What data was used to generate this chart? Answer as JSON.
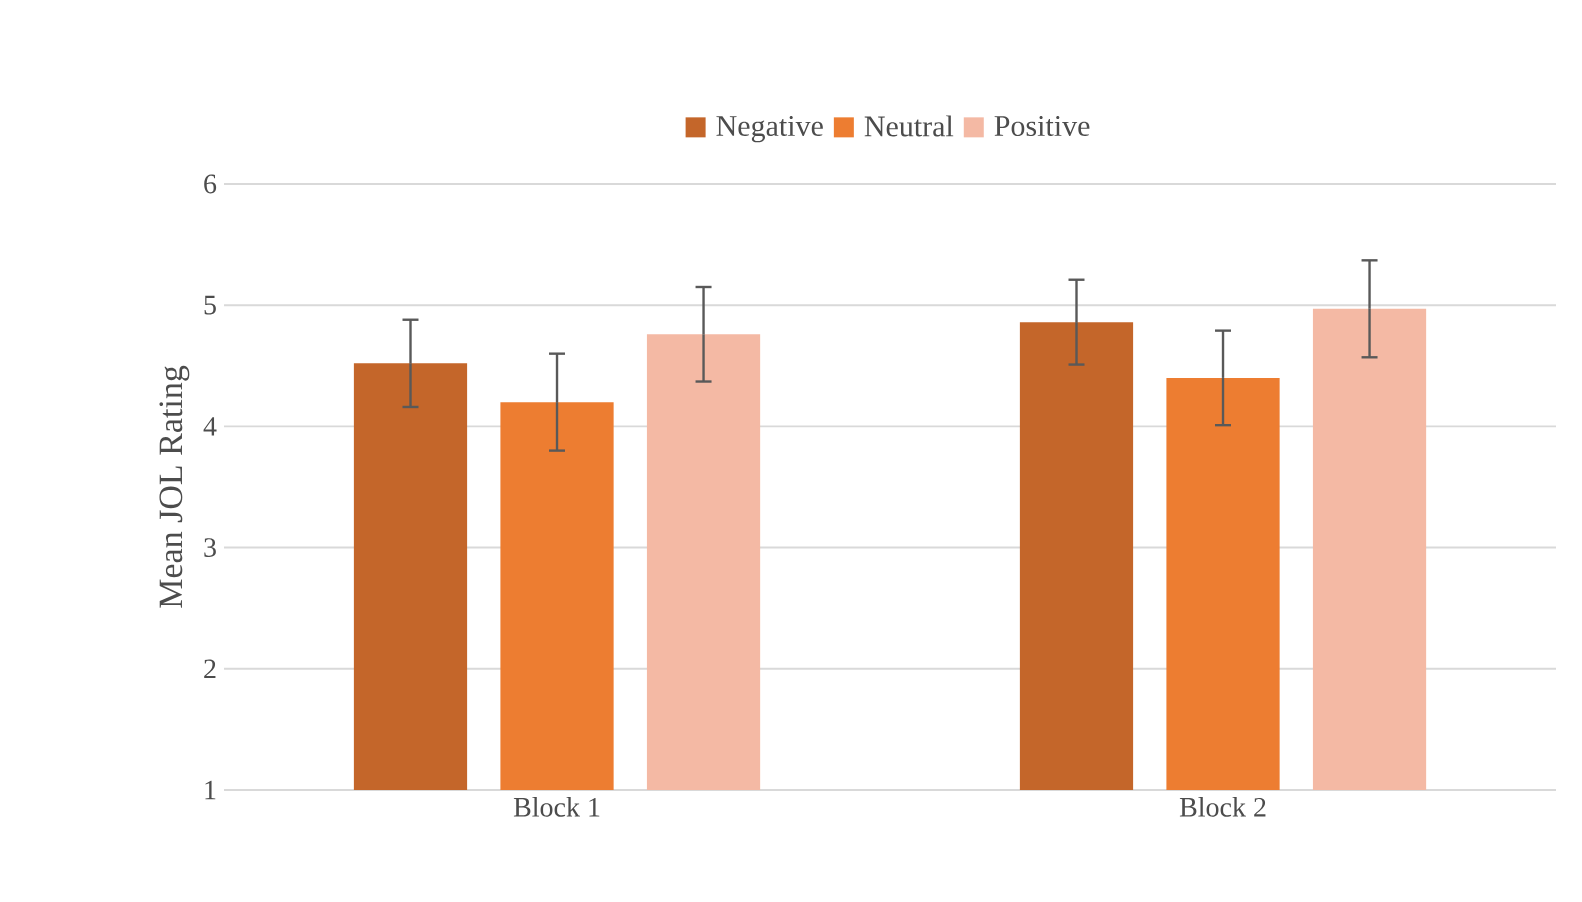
{
  "chart_data": {
    "type": "bar",
    "ylabel": "Mean JOL Rating",
    "categories": [
      "Block 1",
      "Block 2"
    ],
    "series": [
      {
        "name": "Negative",
        "color": "#c4662a",
        "values": [
          4.52,
          4.86
        ],
        "errors": [
          0.36,
          0.35
        ]
      },
      {
        "name": "Neutral",
        "color": "#ed7d31",
        "values": [
          4.2,
          4.4
        ],
        "errors": [
          0.4,
          0.39
        ]
      },
      {
        "name": "Positive",
        "color": "#f4b9a4",
        "values": [
          4.76,
          4.97
        ],
        "errors": [
          0.39,
          0.4
        ]
      }
    ],
    "ylim": [
      1,
      6
    ],
    "yticks": [
      1,
      2,
      3,
      4,
      5,
      6
    ],
    "grid": "y",
    "legend": "top"
  }
}
